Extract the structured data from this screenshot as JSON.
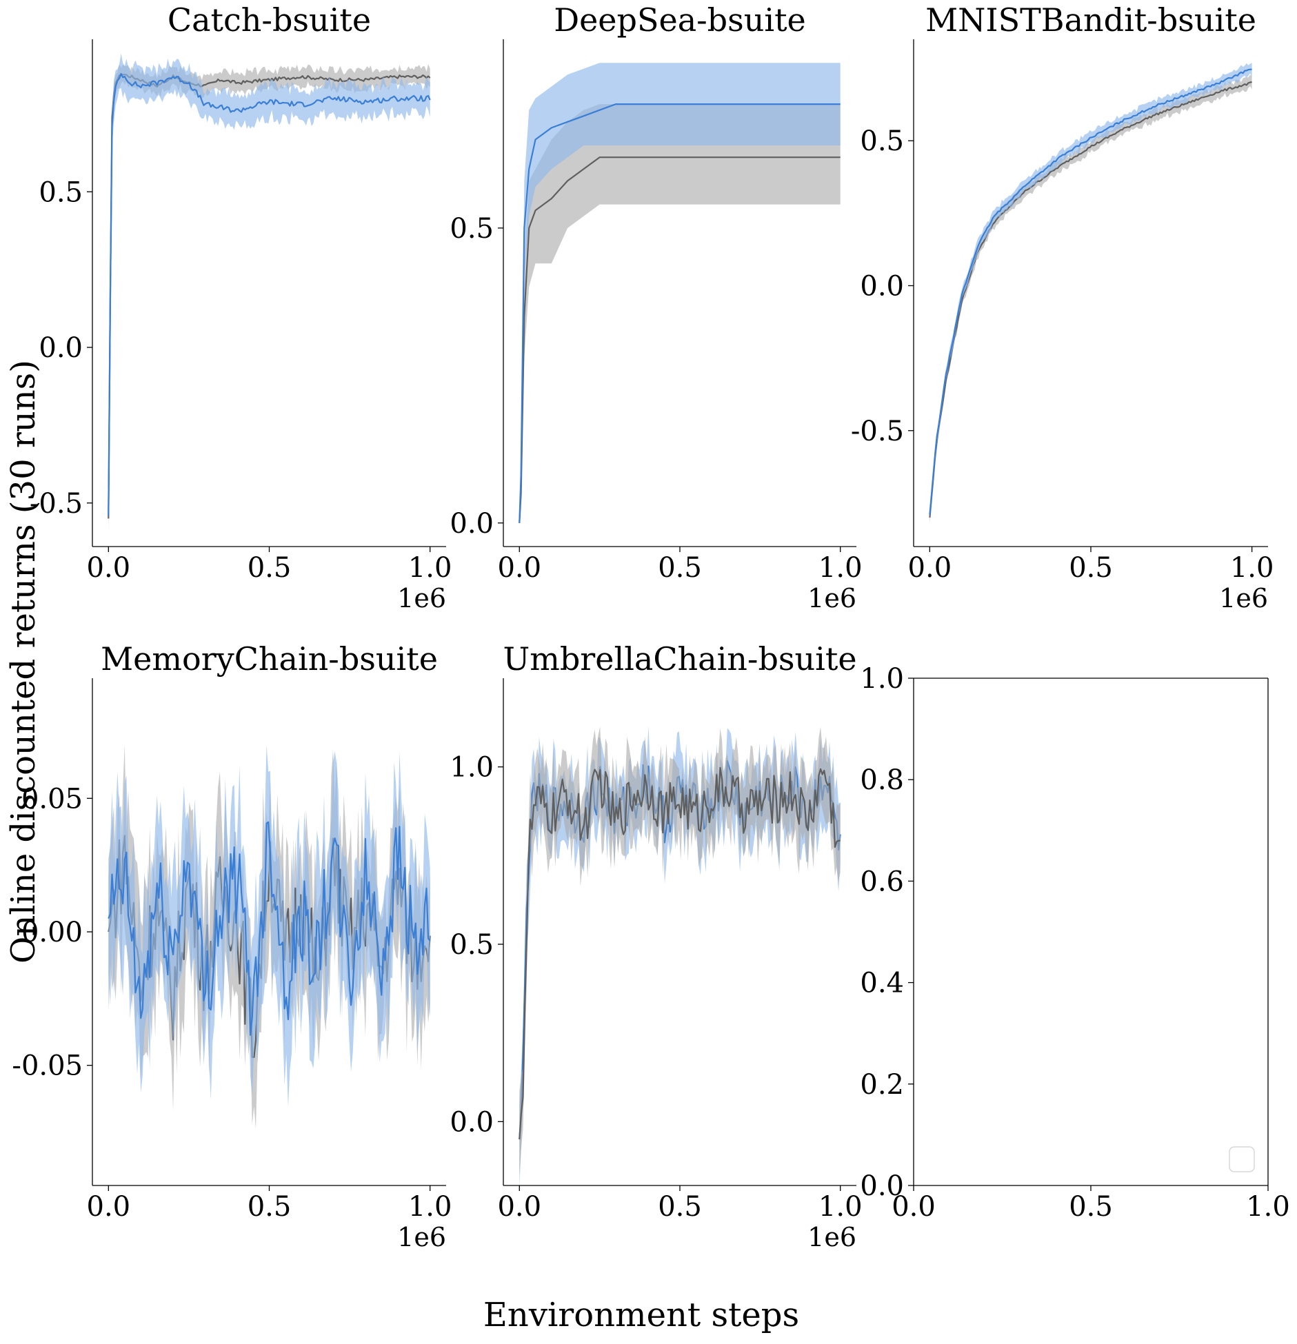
{
  "figure": {
    "xlabel": "Environment steps",
    "ylabel": "Online discounted returns (30 runs)"
  },
  "colors": {
    "blue": "#3a7fd5",
    "blue_band": "#8fb8ea",
    "gray": "#5f5f5f",
    "gray_band": "#a9a9a9"
  },
  "chart_data": [
    {
      "type": "line",
      "title": "Catch-bsuite",
      "xlim": [
        -0.05,
        1.05
      ],
      "ylim": [
        -0.64,
        0.99
      ],
      "xticks": [
        0.0,
        0.5,
        1.0
      ],
      "xtick_labels": [
        "0.0",
        "0.5",
        "1.0"
      ],
      "xoffset": "1e6",
      "yticks": [
        -0.5,
        0.0,
        0.5
      ],
      "ytick_labels": [
        "-0.5",
        "0.0",
        "0.5"
      ],
      "series": [
        {
          "key": "gray",
          "x": [
            0,
            0.01,
            0.02,
            0.04,
            0.07,
            0.1,
            0.15,
            0.2,
            0.25,
            0.3,
            0.35,
            0.4,
            0.5,
            0.6,
            0.7,
            0.8,
            0.9,
            1.0
          ],
          "y": [
            -0.55,
            0.72,
            0.85,
            0.88,
            0.87,
            0.86,
            0.84,
            0.87,
            0.85,
            0.84,
            0.86,
            0.85,
            0.86,
            0.87,
            0.86,
            0.86,
            0.87,
            0.87
          ],
          "band": 0.03
        },
        {
          "key": "blue",
          "x": [
            0,
            0.01,
            0.02,
            0.04,
            0.07,
            0.1,
            0.15,
            0.2,
            0.25,
            0.3,
            0.35,
            0.4,
            0.5,
            0.6,
            0.7,
            0.8,
            0.9,
            1.0
          ],
          "y": [
            -0.54,
            0.7,
            0.83,
            0.88,
            0.85,
            0.84,
            0.85,
            0.87,
            0.85,
            0.78,
            0.77,
            0.76,
            0.79,
            0.78,
            0.8,
            0.79,
            0.8,
            0.8
          ],
          "band": 0.05
        }
      ]
    },
    {
      "type": "line",
      "title": "DeepSea-bsuite",
      "xlim": [
        -0.05,
        1.05
      ],
      "ylim": [
        -0.04,
        0.82
      ],
      "xticks": [
        0.0,
        0.5,
        1.0
      ],
      "xtick_labels": [
        "0.0",
        "0.5",
        "1.0"
      ],
      "xoffset": "1e6",
      "yticks": [
        0.0,
        0.5
      ],
      "ytick_labels": [
        "0.0",
        "0.5"
      ],
      "series": [
        {
          "key": "gray",
          "x": [
            0,
            0.005,
            0.015,
            0.03,
            0.05,
            0.1,
            0.15,
            0.2,
            0.25,
            0.3,
            0.5,
            0.75,
            1.0
          ],
          "y": [
            0.0,
            0.05,
            0.35,
            0.5,
            0.53,
            0.55,
            0.58,
            0.6,
            0.62,
            0.62,
            0.62,
            0.62,
            0.62
          ],
          "lo": [
            0.0,
            0.03,
            0.28,
            0.4,
            0.44,
            0.44,
            0.5,
            0.52,
            0.54,
            0.54,
            0.54,
            0.54,
            0.54
          ],
          "hi": [
            0.0,
            0.08,
            0.43,
            0.58,
            0.6,
            0.65,
            0.68,
            0.7,
            0.71,
            0.71,
            0.71,
            0.71,
            0.71
          ]
        },
        {
          "key": "blue",
          "x": [
            0,
            0.005,
            0.015,
            0.03,
            0.05,
            0.1,
            0.15,
            0.2,
            0.25,
            0.3,
            0.5,
            0.75,
            1.0
          ],
          "y": [
            0.0,
            0.08,
            0.5,
            0.6,
            0.65,
            0.67,
            0.68,
            0.69,
            0.7,
            0.71,
            0.71,
            0.71,
            0.71
          ],
          "lo": [
            0.0,
            0.05,
            0.42,
            0.52,
            0.57,
            0.6,
            0.62,
            0.64,
            0.64,
            0.64,
            0.64,
            0.64,
            0.64
          ],
          "hi": [
            0.0,
            0.1,
            0.58,
            0.7,
            0.72,
            0.74,
            0.76,
            0.77,
            0.78,
            0.78,
            0.78,
            0.78,
            0.78
          ]
        }
      ]
    },
    {
      "type": "line",
      "title": "MNISTBandit-bsuite",
      "xlim": [
        -0.05,
        1.05
      ],
      "ylim": [
        -0.9,
        0.85
      ],
      "xticks": [
        0.0,
        0.5,
        1.0
      ],
      "xtick_labels": [
        "0.0",
        "0.5",
        "1.0"
      ],
      "xoffset": "1e6",
      "yticks": [
        -0.5,
        0.0,
        0.5
      ],
      "ytick_labels": [
        "-0.5",
        "0.0",
        "0.5"
      ],
      "series": [
        {
          "key": "gray",
          "x": [
            0,
            0.02,
            0.05,
            0.1,
            0.15,
            0.2,
            0.3,
            0.4,
            0.5,
            0.6,
            0.7,
            0.8,
            0.9,
            1.0
          ],
          "y": [
            -0.8,
            -0.55,
            -0.33,
            -0.05,
            0.12,
            0.22,
            0.33,
            0.41,
            0.48,
            0.54,
            0.59,
            0.63,
            0.67,
            0.7
          ],
          "band": 0.02
        },
        {
          "key": "blue",
          "x": [
            0,
            0.02,
            0.05,
            0.1,
            0.15,
            0.2,
            0.3,
            0.4,
            0.5,
            0.6,
            0.7,
            0.8,
            0.9,
            1.0
          ],
          "y": [
            -0.79,
            -0.54,
            -0.31,
            -0.03,
            0.14,
            0.24,
            0.35,
            0.44,
            0.51,
            0.57,
            0.62,
            0.66,
            0.7,
            0.75
          ],
          "band": 0.02
        }
      ]
    },
    {
      "type": "line",
      "title": "MemoryChain-bsuite",
      "xlim": [
        -0.05,
        1.05
      ],
      "ylim": [
        -0.095,
        0.095
      ],
      "xticks": [
        0.0,
        0.5,
        1.0
      ],
      "xtick_labels": [
        "0.0",
        "0.5",
        "1.0"
      ],
      "xoffset": "1e6",
      "yticks": [
        -0.05,
        0.0,
        0.05
      ],
      "ytick_labels": [
        "-0.05",
        "0.00",
        "0.05"
      ],
      "series": [
        {
          "key": "gray",
          "x": [
            0,
            0.05,
            0.1,
            0.15,
            0.2,
            0.25,
            0.3,
            0.35,
            0.4,
            0.45,
            0.5,
            0.55,
            0.6,
            0.65,
            0.7,
            0.75,
            0.8,
            0.85,
            0.9,
            0.95,
            1.0
          ],
          "y": [
            0.0,
            0.03,
            -0.02,
            0.01,
            -0.025,
            0.02,
            -0.015,
            0.015,
            0.005,
            -0.04,
            0.03,
            -0.01,
            0.015,
            -0.02,
            0.025,
            -0.005,
            0.01,
            -0.015,
            0.02,
            -0.01,
            0.005
          ],
          "band": 0.025
        },
        {
          "key": "blue",
          "x": [
            0,
            0.05,
            0.1,
            0.15,
            0.2,
            0.25,
            0.3,
            0.35,
            0.4,
            0.45,
            0.5,
            0.55,
            0.6,
            0.65,
            0.7,
            0.75,
            0.8,
            0.85,
            0.9,
            0.95,
            1.0
          ],
          "y": [
            0.005,
            0.02,
            -0.03,
            0.015,
            -0.01,
            0.03,
            -0.025,
            0.01,
            0.02,
            -0.03,
            0.04,
            -0.02,
            0.005,
            -0.01,
            0.03,
            -0.02,
            0.02,
            -0.01,
            0.03,
            -0.005,
            0.0
          ],
          "band": 0.025
        }
      ]
    },
    {
      "type": "line",
      "title": "UmbrellaChain-bsuite",
      "xlim": [
        -0.05,
        1.05
      ],
      "ylim": [
        -0.18,
        1.25
      ],
      "xticks": [
        0.0,
        0.5,
        1.0
      ],
      "xtick_labels": [
        "0.0",
        "0.5",
        "1.0"
      ],
      "xoffset": "1e6",
      "yticks": [
        0.0,
        0.5,
        1.0
      ],
      "ytick_labels": [
        "0.0",
        "0.5",
        "1.0"
      ],
      "series": [
        {
          "key": "blue",
          "x": [
            0,
            0.01,
            0.02,
            0.03,
            0.05,
            0.1,
            0.15,
            0.2,
            0.25,
            0.3,
            0.35,
            0.4,
            0.45,
            0.5,
            0.55,
            0.6,
            0.65,
            0.7,
            0.75,
            0.8,
            0.85,
            0.9,
            0.95,
            1.0
          ],
          "y": [
            -0.05,
            0.1,
            0.5,
            0.8,
            0.92,
            0.88,
            0.9,
            0.85,
            0.95,
            0.86,
            0.9,
            0.97,
            0.85,
            0.93,
            0.88,
            0.9,
            0.96,
            0.86,
            0.92,
            0.89,
            0.95,
            0.87,
            0.98,
            0.78
          ],
          "band": 0.1
        },
        {
          "key": "gray",
          "x": [
            0,
            0.01,
            0.02,
            0.03,
            0.05,
            0.1,
            0.15,
            0.2,
            0.25,
            0.3,
            0.35,
            0.4,
            0.45,
            0.5,
            0.55,
            0.6,
            0.65,
            0.7,
            0.75,
            0.8,
            0.85,
            0.9,
            0.95,
            1.0
          ],
          "y": [
            -0.05,
            0.08,
            0.45,
            0.78,
            0.9,
            0.86,
            0.92,
            0.83,
            0.97,
            0.84,
            0.92,
            0.95,
            0.87,
            0.91,
            0.86,
            0.92,
            0.94,
            0.88,
            0.9,
            0.91,
            0.93,
            0.85,
            1.0,
            0.75
          ],
          "band": 0.1
        }
      ]
    },
    {
      "type": "line",
      "title": "",
      "xlim": [
        0.0,
        1.0
      ],
      "ylim": [
        0.0,
        1.0
      ],
      "xticks": [
        0.0,
        0.5,
        1.0
      ],
      "xtick_labels": [
        "0.0",
        "0.5",
        "1.0"
      ],
      "xoffset": "",
      "yticks": [
        0.0,
        0.2,
        0.4,
        0.6,
        0.8,
        1.0
      ],
      "ytick_labels": [
        "0.0",
        "0.2",
        "0.4",
        "0.6",
        "0.8",
        "1.0"
      ],
      "full_frame": true,
      "empty_legend": true,
      "series": []
    }
  ]
}
